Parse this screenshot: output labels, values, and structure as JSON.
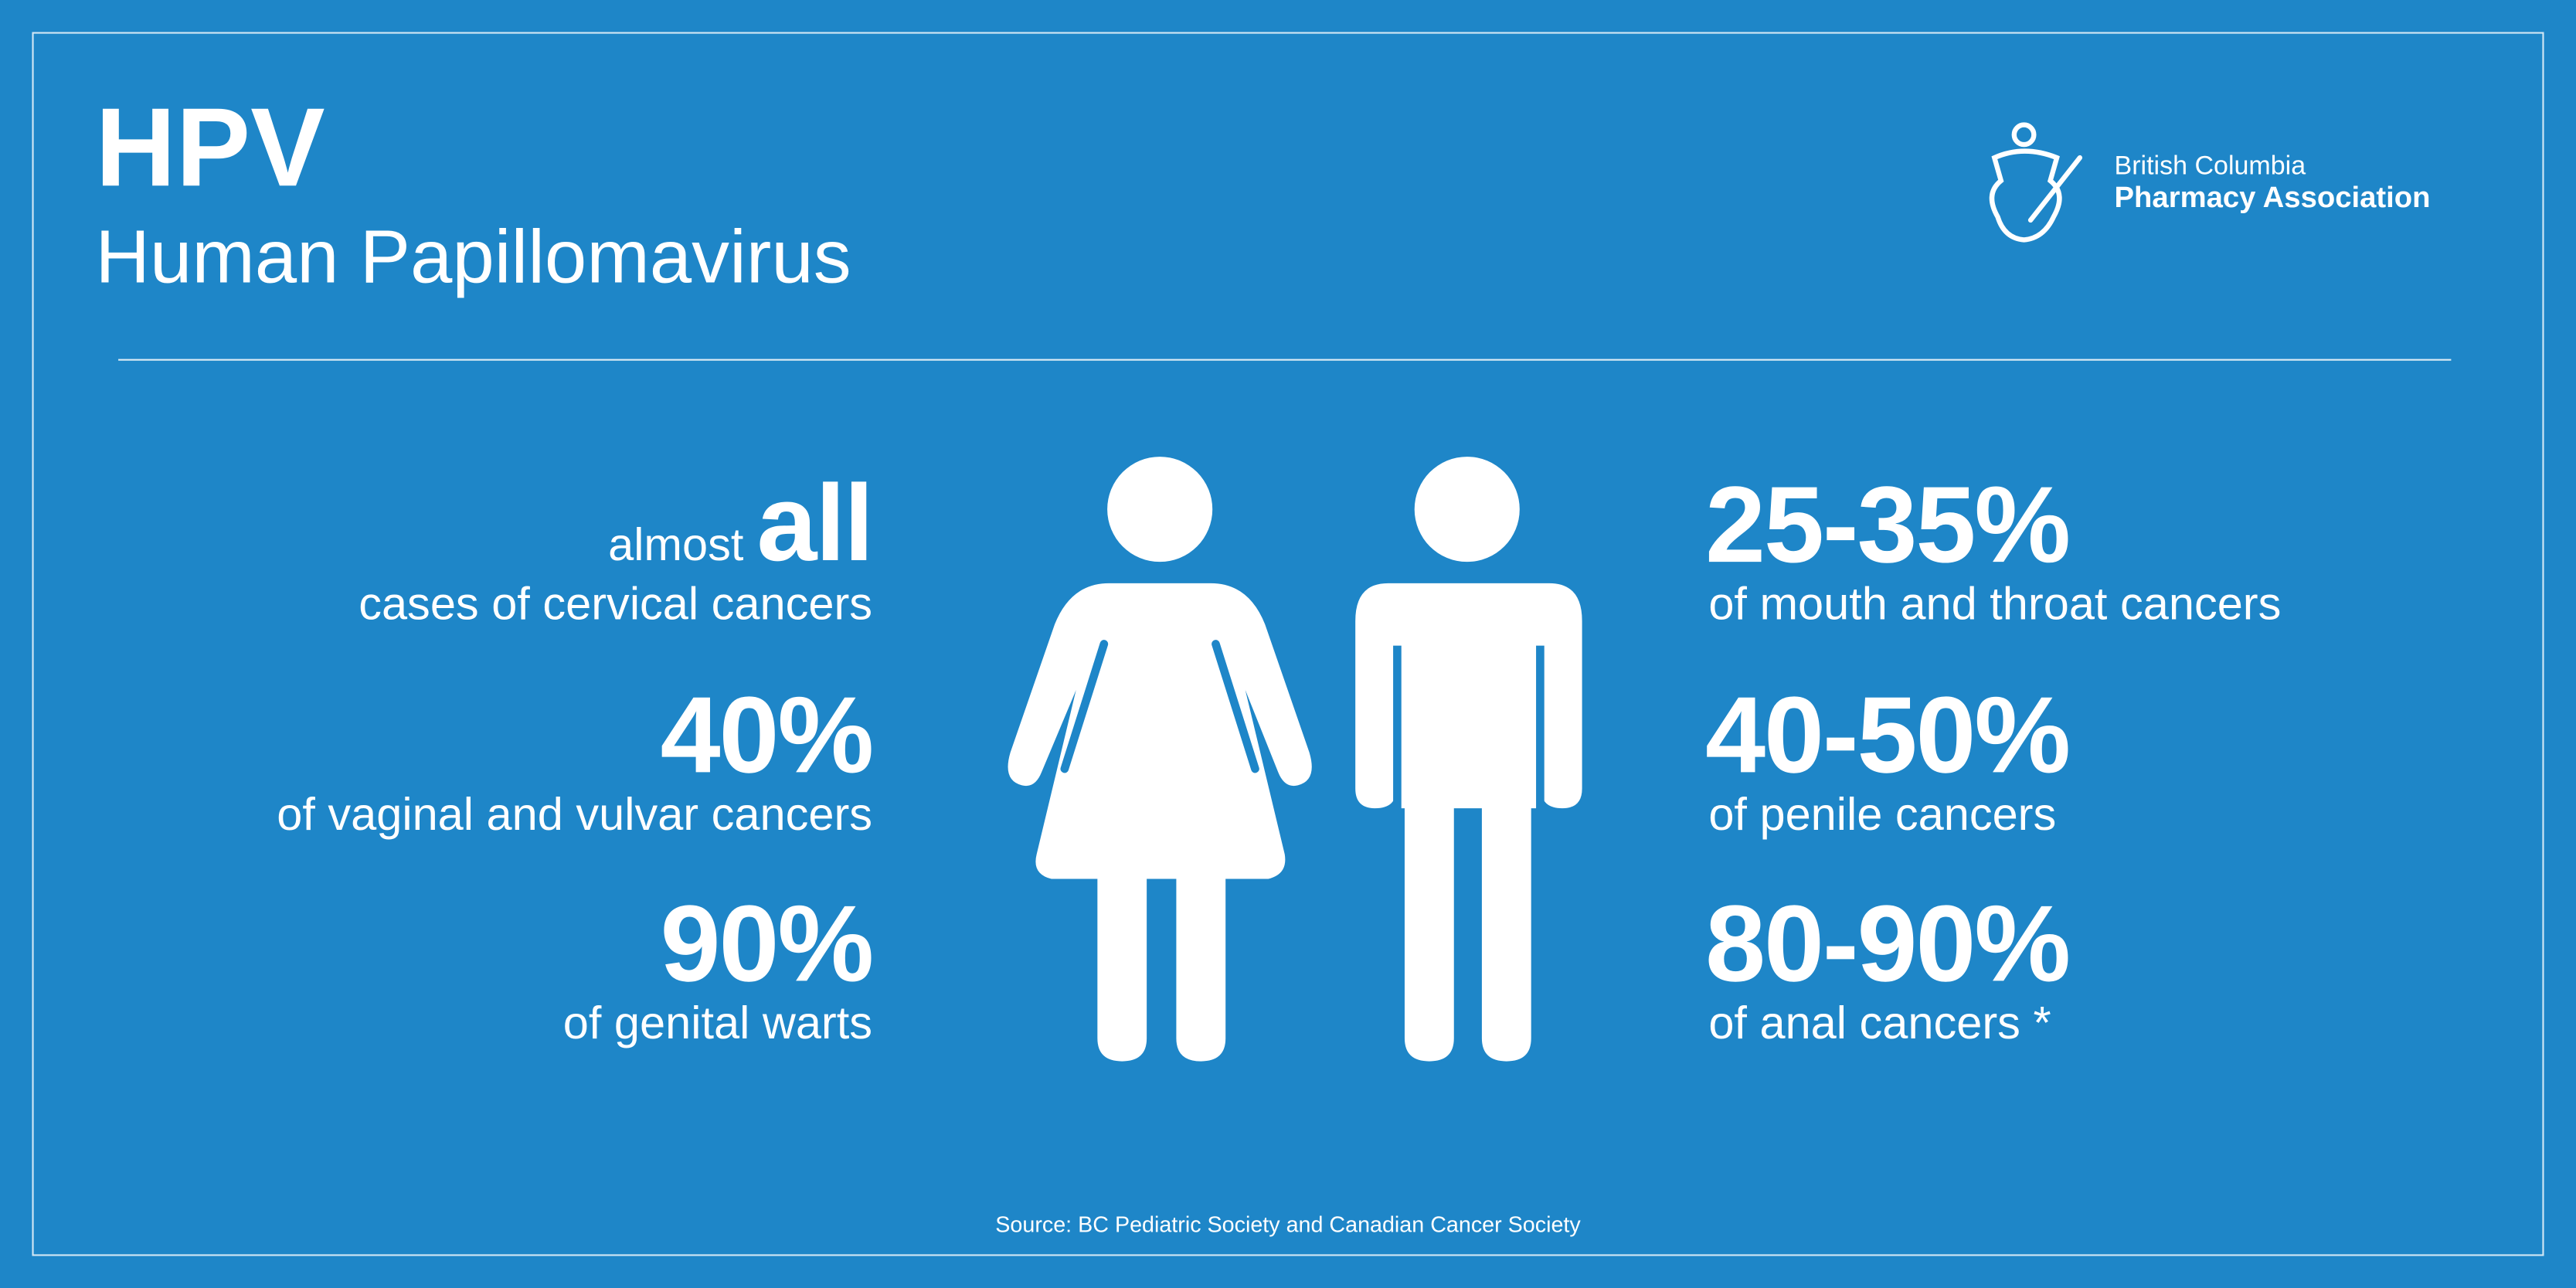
{
  "header": {
    "title": "HPV",
    "subtitle": "Human Papillomavirus"
  },
  "logo": {
    "line1": "British Columbia",
    "line2": "Pharmacy Association"
  },
  "female_stats": [
    {
      "prefix": "almost",
      "figure": "all",
      "description": "cases of cervical cancers"
    },
    {
      "figure": "40%",
      "description": "of vaginal and vulvar cancers"
    },
    {
      "figure": "90%",
      "description": "of genital warts"
    }
  ],
  "male_stats": [
    {
      "figure": "25-35%",
      "description": "of mouth and throat cancers"
    },
    {
      "figure": "40-50%",
      "description": "of penile cancers"
    },
    {
      "figure": "80-90%",
      "description": "of anal cancers *"
    }
  ],
  "source": "Source: BC Pediatric Society and Canadian Cancer Society"
}
